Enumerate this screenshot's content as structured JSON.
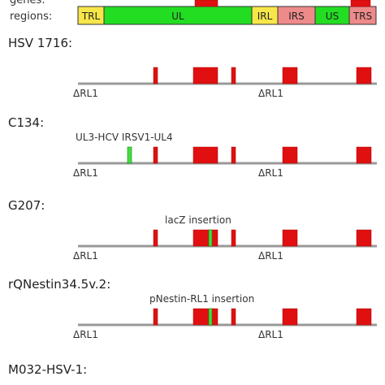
{
  "header": {
    "label_top": "genes:",
    "label_regions": "regions:",
    "regions": [
      {
        "id": "TRL",
        "label": "TRL",
        "color": "#f7e64a"
      },
      {
        "id": "UL",
        "label": "UL",
        "color": "#22dd22"
      },
      {
        "id": "IRL",
        "label": "IRL",
        "color": "#f7e64a"
      },
      {
        "id": "IRS",
        "label": "IRS",
        "color": "#ee8a8a"
      },
      {
        "id": "US",
        "label": "US",
        "color": "#22dd22"
      },
      {
        "id": "TRS",
        "label": "TRS",
        "color": "#ee8a8a"
      }
    ]
  },
  "constructs": [
    {
      "id": "hsv1716",
      "name": "HSV 1716:",
      "annotation": "",
      "deletion_left": "ΔRL1",
      "deletion_right": "ΔRL1",
      "insert": "none"
    },
    {
      "id": "c134",
      "name": "C134:",
      "annotation": "UL3-HCV IRSV1-UL4",
      "deletion_left": "ΔRL1",
      "deletion_right": "ΔRL1",
      "insert": "ul3-ul4"
    },
    {
      "id": "g207",
      "name": "G207:",
      "annotation": "lacZ insertion",
      "deletion_left": "ΔRL1",
      "deletion_right": "ΔRL1",
      "insert": "middle"
    },
    {
      "id": "rqnestin",
      "name": "rQNestin34.5v.2:",
      "annotation": "pNestin-RL1 insertion",
      "deletion_left": "ΔRL1",
      "deletion_right": "ΔRL1",
      "insert": "middle"
    },
    {
      "id": "m032",
      "name": "M032-HSV-1:",
      "annotation": "",
      "deletion_left": "",
      "deletion_right": "",
      "insert": "none"
    }
  ],
  "colors": {
    "backbone": "#999999",
    "gene": "#e01010",
    "gene_stroke": "#b00000",
    "insert": "#44dd44",
    "insert_stroke": "#0a8a0a"
  }
}
